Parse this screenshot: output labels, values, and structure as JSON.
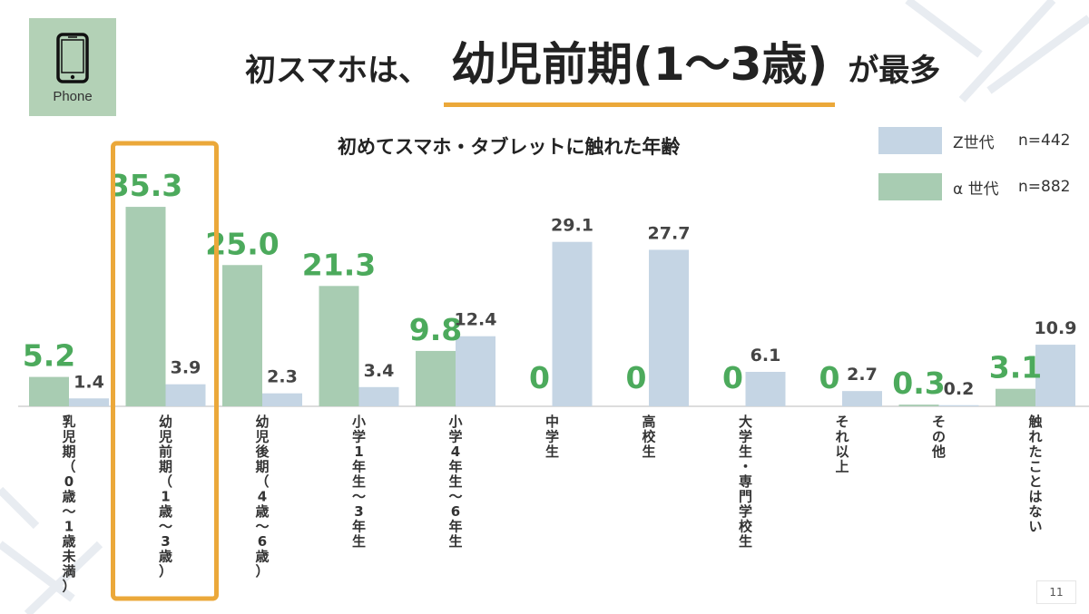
{
  "header": {
    "icon_label": "Phone",
    "headline_prefix": "初スマホは、",
    "headline_emphasis": "幼児前期(1～3歳)",
    "headline_suffix": "が最多"
  },
  "colors": {
    "alpha": "#a8ccb2",
    "gen_z": "#c5d5e4",
    "alpha_label": "#4caa5c",
    "gen_z_label": "#444444",
    "highlight": "#eba83a",
    "icon_bg": "#b3d1b6"
  },
  "legend": [
    {
      "name": "Z世代",
      "n": "n=442",
      "color": "#c5d5e4"
    },
    {
      "name": "α 世代",
      "n": "n=882",
      "color": "#a8ccb2"
    }
  ],
  "page_number": "11",
  "chart_data": {
    "type": "bar",
    "title": "初めてスマホ・タブレットに触れた年齢",
    "categories": [
      "乳児期（0歳～1歳未満）",
      "幼児前期（1歳～3歳）",
      "幼児後期（4歳～6歳）",
      "小学1年生～3年生",
      "小学4年生～6年生",
      "中学生",
      "高校生",
      "大学生・専門学校生",
      "それ以上",
      "その他",
      "触れたことはない"
    ],
    "series": [
      {
        "name": "α 世代",
        "values": [
          5.2,
          35.3,
          25.0,
          21.3,
          9.8,
          0,
          0,
          0,
          0,
          0.3,
          3.1
        ],
        "labels": [
          "5.2",
          "35.3",
          "25.0",
          "21.3",
          "9.8",
          "0",
          "0",
          "0",
          "0",
          "0.3",
          "3.1"
        ]
      },
      {
        "name": "Z世代",
        "values": [
          1.4,
          3.9,
          2.3,
          3.4,
          12.4,
          29.1,
          27.7,
          6.1,
          2.7,
          0.2,
          10.9
        ],
        "labels": [
          "1.4",
          "3.9",
          "2.3",
          "3.4",
          "12.4",
          "29.1",
          "27.7",
          "6.1",
          "2.7",
          "0.2",
          "10.9"
        ]
      }
    ],
    "ylim": [
      0,
      40
    ],
    "grid": false,
    "legend_position": "top-right",
    "highlighted_category": "幼児前期（1歳～3歳）"
  }
}
